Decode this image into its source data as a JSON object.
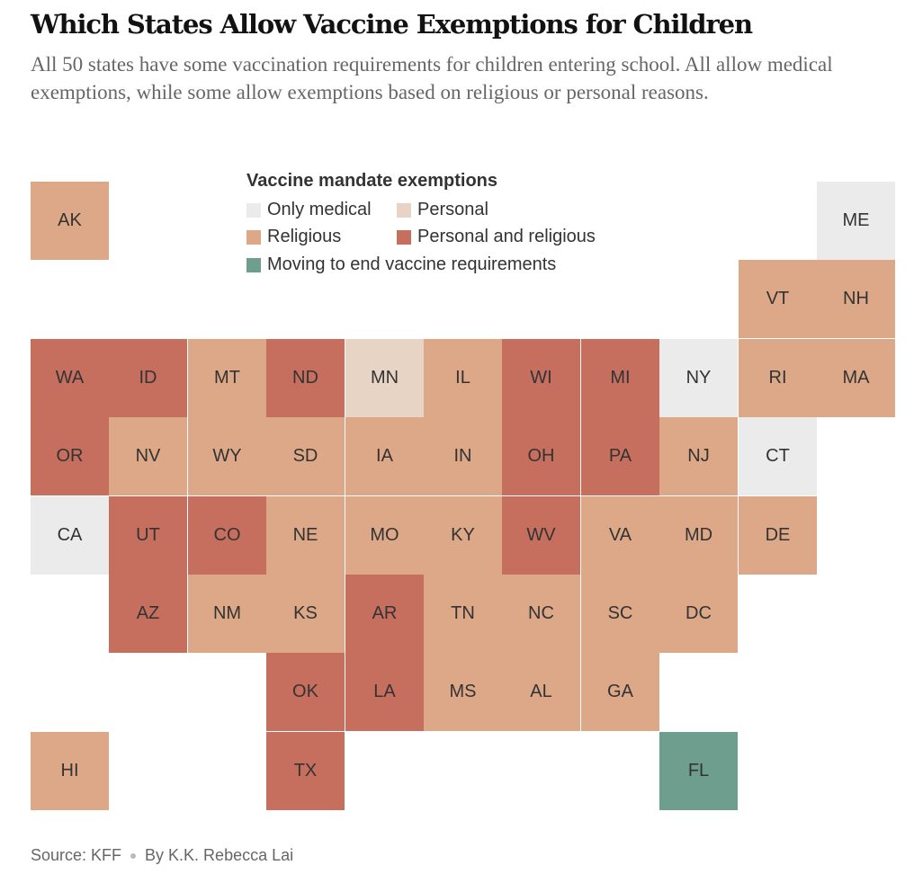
{
  "header": {
    "title": "Which States Allow Vaccine Exemptions for Children",
    "subtitle": "All 50 states have some vaccination requirements for children entering school. All allow medical exemptions, while some allow exemptions based on religious or personal reasons."
  },
  "legend": {
    "title": "Vaccine mandate exemptions",
    "items": [
      {
        "key": "medical",
        "label": "Only medical",
        "color": "#ebebeb"
      },
      {
        "key": "personal",
        "label": "Personal",
        "color": "#e8d4c5"
      },
      {
        "key": "religious",
        "label": "Religious",
        "color": "#dca887"
      },
      {
        "key": "both",
        "label": "Personal and religious",
        "color": "#c66f5e"
      },
      {
        "key": "ending",
        "label": "Moving to end vaccine requirements",
        "color": "#6d9e8e"
      }
    ]
  },
  "states": [
    {
      "abbr": "AK",
      "col": 0,
      "row": 0,
      "cat": "religious"
    },
    {
      "abbr": "ME",
      "col": 10,
      "row": 0,
      "cat": "medical"
    },
    {
      "abbr": "VT",
      "col": 9,
      "row": 1,
      "cat": "religious"
    },
    {
      "abbr": "NH",
      "col": 10,
      "row": 1,
      "cat": "religious"
    },
    {
      "abbr": "WA",
      "col": 0,
      "row": 2,
      "cat": "both"
    },
    {
      "abbr": "ID",
      "col": 1,
      "row": 2,
      "cat": "both"
    },
    {
      "abbr": "MT",
      "col": 2,
      "row": 2,
      "cat": "religious"
    },
    {
      "abbr": "ND",
      "col": 3,
      "row": 2,
      "cat": "both"
    },
    {
      "abbr": "MN",
      "col": 4,
      "row": 2,
      "cat": "personal"
    },
    {
      "abbr": "IL",
      "col": 5,
      "row": 2,
      "cat": "religious"
    },
    {
      "abbr": "WI",
      "col": 6,
      "row": 2,
      "cat": "both"
    },
    {
      "abbr": "MI",
      "col": 7,
      "row": 2,
      "cat": "both"
    },
    {
      "abbr": "NY",
      "col": 8,
      "row": 2,
      "cat": "medical"
    },
    {
      "abbr": "RI",
      "col": 9,
      "row": 2,
      "cat": "religious"
    },
    {
      "abbr": "MA",
      "col": 10,
      "row": 2,
      "cat": "religious"
    },
    {
      "abbr": "OR",
      "col": 0,
      "row": 3,
      "cat": "both"
    },
    {
      "abbr": "NV",
      "col": 1,
      "row": 3,
      "cat": "religious"
    },
    {
      "abbr": "WY",
      "col": 2,
      "row": 3,
      "cat": "religious"
    },
    {
      "abbr": "SD",
      "col": 3,
      "row": 3,
      "cat": "religious"
    },
    {
      "abbr": "IA",
      "col": 4,
      "row": 3,
      "cat": "religious"
    },
    {
      "abbr": "IN",
      "col": 5,
      "row": 3,
      "cat": "religious"
    },
    {
      "abbr": "OH",
      "col": 6,
      "row": 3,
      "cat": "both"
    },
    {
      "abbr": "PA",
      "col": 7,
      "row": 3,
      "cat": "both"
    },
    {
      "abbr": "NJ",
      "col": 8,
      "row": 3,
      "cat": "religious"
    },
    {
      "abbr": "CT",
      "col": 9,
      "row": 3,
      "cat": "medical"
    },
    {
      "abbr": "CA",
      "col": 0,
      "row": 4,
      "cat": "medical"
    },
    {
      "abbr": "UT",
      "col": 1,
      "row": 4,
      "cat": "both"
    },
    {
      "abbr": "CO",
      "col": 2,
      "row": 4,
      "cat": "both"
    },
    {
      "abbr": "NE",
      "col": 3,
      "row": 4,
      "cat": "religious"
    },
    {
      "abbr": "MO",
      "col": 4,
      "row": 4,
      "cat": "religious"
    },
    {
      "abbr": "KY",
      "col": 5,
      "row": 4,
      "cat": "religious"
    },
    {
      "abbr": "WV",
      "col": 6,
      "row": 4,
      "cat": "both"
    },
    {
      "abbr": "VA",
      "col": 7,
      "row": 4,
      "cat": "religious"
    },
    {
      "abbr": "MD",
      "col": 8,
      "row": 4,
      "cat": "religious"
    },
    {
      "abbr": "DE",
      "col": 9,
      "row": 4,
      "cat": "religious"
    },
    {
      "abbr": "AZ",
      "col": 1,
      "row": 5,
      "cat": "both"
    },
    {
      "abbr": "NM",
      "col": 2,
      "row": 5,
      "cat": "religious"
    },
    {
      "abbr": "KS",
      "col": 3,
      "row": 5,
      "cat": "religious"
    },
    {
      "abbr": "AR",
      "col": 4,
      "row": 5,
      "cat": "both"
    },
    {
      "abbr": "TN",
      "col": 5,
      "row": 5,
      "cat": "religious"
    },
    {
      "abbr": "NC",
      "col": 6,
      "row": 5,
      "cat": "religious"
    },
    {
      "abbr": "SC",
      "col": 7,
      "row": 5,
      "cat": "religious"
    },
    {
      "abbr": "DC",
      "col": 8,
      "row": 5,
      "cat": "religious"
    },
    {
      "abbr": "OK",
      "col": 3,
      "row": 6,
      "cat": "both"
    },
    {
      "abbr": "LA",
      "col": 4,
      "row": 6,
      "cat": "both"
    },
    {
      "abbr": "MS",
      "col": 5,
      "row": 6,
      "cat": "religious"
    },
    {
      "abbr": "AL",
      "col": 6,
      "row": 6,
      "cat": "religious"
    },
    {
      "abbr": "GA",
      "col": 7,
      "row": 6,
      "cat": "religious"
    },
    {
      "abbr": "HI",
      "col": 0,
      "row": 7,
      "cat": "religious"
    },
    {
      "abbr": "TX",
      "col": 3,
      "row": 7,
      "cat": "both"
    },
    {
      "abbr": "FL",
      "col": 8,
      "row": 7,
      "cat": "ending"
    }
  ],
  "footer": {
    "source": "Source: KFF",
    "byline": "By K.K. Rebecca Lai"
  }
}
